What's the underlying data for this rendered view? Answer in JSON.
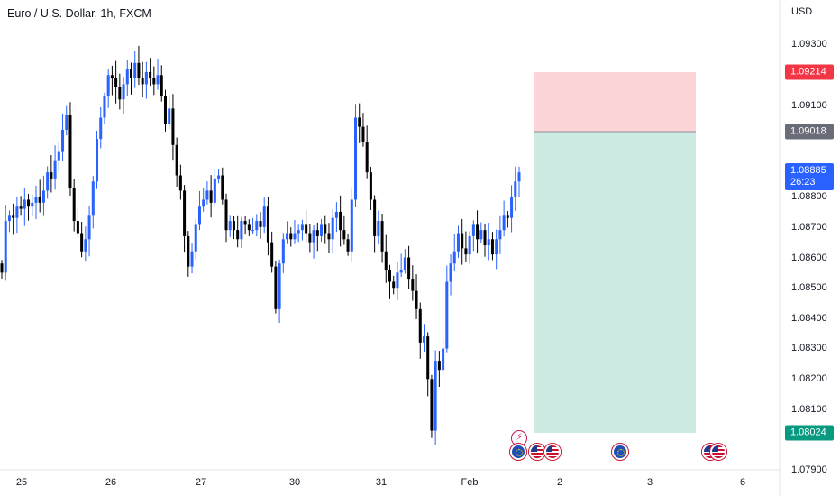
{
  "chart_title": "Euro / U.S. Dollar, 1h, FXCM",
  "currency": "USD",
  "y_ticks": [
    "1.09300",
    "1.09100",
    "1.08800",
    "1.08700",
    "1.08600",
    "1.08500",
    "1.08400",
    "1.08300",
    "1.08200",
    "1.08100",
    "1.07900"
  ],
  "x_ticks": [
    "25",
    "26",
    "27",
    "30",
    "31",
    "Feb",
    "2",
    "3",
    "6"
  ],
  "price_tags": {
    "stop_loss": "1.09214",
    "entry": "1.09018",
    "current": "1.08885",
    "countdown": "26:23",
    "take_profit": "1.08024"
  },
  "colors": {
    "up": "#2962ff",
    "down": "#000000",
    "stop_zone": "#fcd5d8",
    "profit_zone": "#cdebe3",
    "stop_tag": "#f23645",
    "entry_tag": "#6a6d78",
    "current_tag": "#2962ff",
    "profit_tag": "#089981"
  },
  "events": [
    {
      "icon": "flash-icon"
    },
    {
      "icon": "eu-flag-icon"
    },
    {
      "icon": "us-flag-icon"
    },
    {
      "icon": "us-flag-icon"
    },
    {
      "icon": "eu-flag-icon"
    },
    {
      "icon": "us-flag-icon"
    },
    {
      "icon": "us-flag-icon"
    }
  ],
  "chart_data": {
    "type": "candlestick",
    "title": "Euro / U.S. Dollar, 1h, FXCM",
    "symbol": "EUR/USD",
    "timeframe": "1h",
    "x_labels": [
      "25",
      "26",
      "27",
      "30",
      "31",
      "Feb",
      "2",
      "3",
      "6"
    ],
    "ylim": [
      1.0788,
      1.0938
    ],
    "current_price": 1.08885,
    "position": {
      "type": "short",
      "entry": 1.09018,
      "stop_loss": 1.09214,
      "take_profit": 1.08024
    },
    "close_path": [
      1.0855,
      1.0872,
      1.0874,
      1.0873,
      1.0877,
      1.0876,
      1.0879,
      1.0877,
      1.0878,
      1.088,
      1.0878,
      1.0882,
      1.0888,
      1.0886,
      1.0892,
      1.0895,
      1.0902,
      1.0907,
      1.0883,
      1.0872,
      1.0868,
      1.0862,
      1.0866,
      1.0874,
      1.0885,
      1.0899,
      1.0906,
      1.0913,
      1.092,
      1.0919,
      1.0916,
      1.0912,
      1.0917,
      1.0922,
      1.0919,
      1.0924,
      1.0919,
      1.0917,
      1.0921,
      1.0919,
      1.0917,
      1.092,
      1.0913,
      1.0904,
      1.0909,
      1.0897,
      1.0887,
      1.0882,
      1.0867,
      1.0857,
      1.0862,
      1.0871,
      1.0877,
      1.0879,
      1.0882,
      1.0878,
      1.0886,
      1.0887,
      1.0879,
      1.0869,
      1.0872,
      1.0869,
      1.0866,
      1.0872,
      1.0871,
      1.0869,
      1.0869,
      1.0872,
      1.087,
      1.0877,
      1.0865,
      1.0857,
      1.0843,
      1.0858,
      1.0866,
      1.0868,
      1.0866,
      1.0868,
      1.0869,
      1.0871,
      1.0868,
      1.0865,
      1.0869,
      1.0867,
      1.0871,
      1.0868,
      1.0866,
      1.0873,
      1.0875,
      1.0869,
      1.0866,
      1.0862,
      1.0879,
      1.0906,
      1.0903,
      1.0898,
      1.0888,
      1.0879,
      1.0867,
      1.0872,
      1.0862,
      1.0856,
      1.0852,
      1.085,
      1.0855,
      1.0856,
      1.086,
      1.0853,
      1.0849,
      1.0843,
      1.0832,
      1.0834,
      1.082,
      1.0803,
      1.0826,
      1.0823,
      1.083,
      1.0852,
      1.0858,
      1.0862,
      1.0868,
      1.0863,
      1.0861,
      1.0867,
      1.0871,
      1.0866,
      1.0869,
      1.0864,
      1.0866,
      1.0861,
      1.0866,
      1.0869,
      1.0874,
      1.0873,
      1.088,
      1.0885,
      1.0888
    ]
  }
}
